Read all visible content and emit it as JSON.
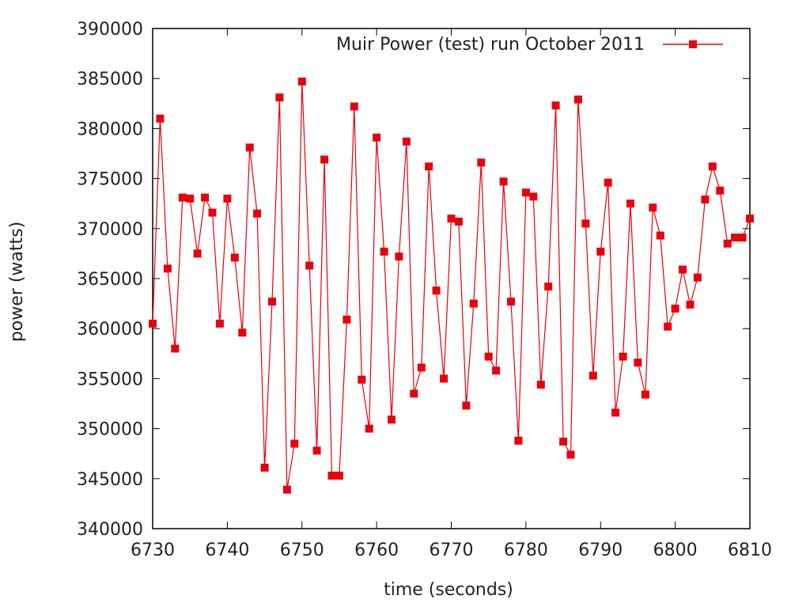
{
  "chart_data": {
    "type": "line",
    "title": "",
    "xlabel": "time (seconds)",
    "ylabel": "power (watts)",
    "xlim": [
      6730,
      6810
    ],
    "ylim": [
      340000,
      390000
    ],
    "xticks": [
      6730,
      6740,
      6750,
      6760,
      6770,
      6780,
      6790,
      6800,
      6810
    ],
    "yticks": [
      340000,
      345000,
      350000,
      355000,
      360000,
      365000,
      370000,
      375000,
      380000,
      385000,
      390000
    ],
    "grid": false,
    "legend_position": "top-right",
    "series": [
      {
        "name": "Muir Power (test) run October 2011",
        "color": "#e8000b",
        "marker": "square",
        "x": [
          6730,
          6731,
          6732,
          6733,
          6734,
          6735,
          6736,
          6737,
          6738,
          6739,
          6740,
          6741,
          6742,
          6743,
          6744,
          6745,
          6746,
          6747,
          6748,
          6749,
          6750,
          6751,
          6752,
          6753,
          6754,
          6755,
          6756,
          6757,
          6758,
          6759,
          6760,
          6761,
          6762,
          6763,
          6764,
          6765,
          6766,
          6767,
          6768,
          6769,
          6770,
          6771,
          6772,
          6773,
          6774,
          6775,
          6776,
          6777,
          6778,
          6779,
          6780,
          6781,
          6782,
          6783,
          6784,
          6785,
          6786,
          6787,
          6788,
          6789,
          6790,
          6791,
          6792,
          6793,
          6794,
          6795,
          6796,
          6797,
          6798,
          6799,
          6800,
          6801,
          6802,
          6803,
          6804,
          6805,
          6806,
          6807,
          6808,
          6809,
          6810
        ],
        "y": [
          360500,
          381000,
          366000,
          358000,
          373100,
          373000,
          367500,
          373100,
          371600,
          360500,
          373000,
          367100,
          359600,
          378100,
          371500,
          346100,
          362700,
          383100,
          343900,
          348500,
          384700,
          366300,
          347800,
          376900,
          345300,
          345300,
          360900,
          382200,
          354900,
          350000,
          379100,
          367700,
          350900,
          367200,
          378700,
          353500,
          356100,
          376200,
          363800,
          355000,
          371000,
          370700,
          352300,
          362500,
          376600,
          357200,
          355800,
          374700,
          362700,
          348800,
          373600,
          373200,
          354400,
          364200,
          382300,
          348700,
          347400,
          382900,
          370500,
          355300,
          367700,
          374600,
          351600,
          357200,
          372500,
          356600,
          353400,
          372100,
          369300,
          360200,
          362000,
          365900,
          362400,
          365100,
          372900,
          376200,
          373800,
          368500,
          369100,
          369100,
          371000
        ]
      }
    ]
  }
}
